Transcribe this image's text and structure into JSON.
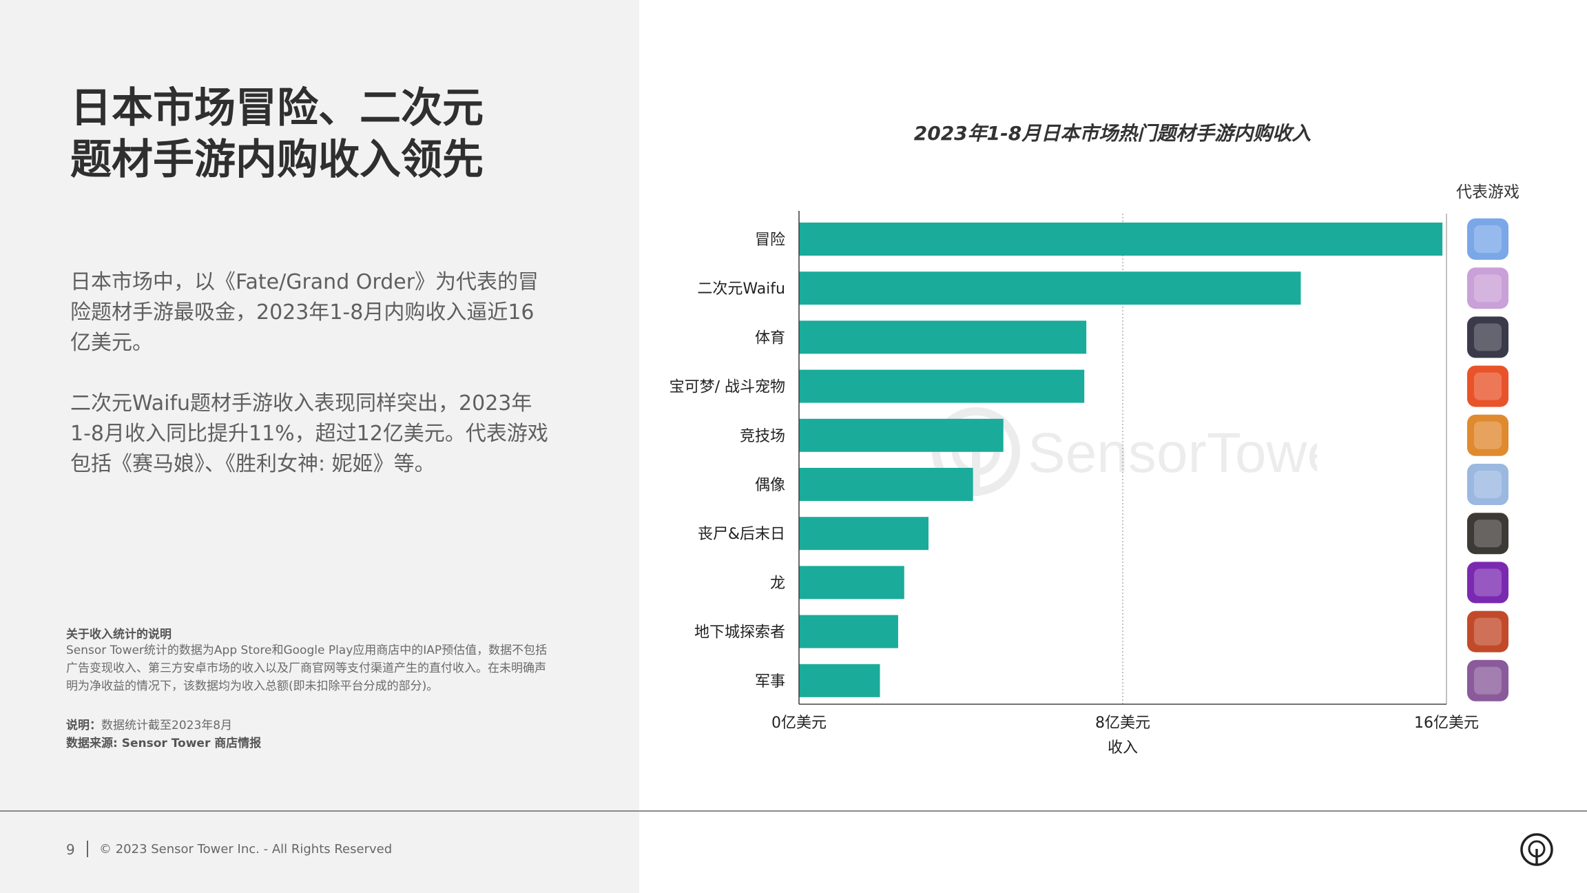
{
  "headline": {
    "line1": "日本市场冒险、二次元",
    "line2": "题材手游内购收入领先"
  },
  "paragraphs": [
    "日本市场中，以《Fate/Grand Order》为代表的冒险题材手游最吸金，2023年1-8月内购收入逼近16亿美元。",
    "二次元Waifu题材手游收入表现同样突出，2023年1-8月收入同比提升11%，超过12亿美元。代表游戏包括《赛马娘》、《胜利女神: 妮姬》等。"
  ],
  "notes": {
    "title": "关于收入统计的说明",
    "body": "Sensor Tower统计的数据为App Store和Google Play应用商店中的IAP预估值，数据不包括广告变现收入、第三方安卓市场的收入以及厂商官网等支付渠道产生的直付收入。在未明确声明为净收益的情况下，该数据均为收入总额(即未扣除平台分成的部分)。",
    "date_label": "说明：",
    "date_text": "数据统计截至2023年8月",
    "source": "数据来源: Sensor Tower 商店情报"
  },
  "footer": {
    "page_number": "9",
    "copyright": "© 2023 Sensor Tower Inc. - All Rights Reserved"
  },
  "watermark_text": "SensorTower",
  "colors": {
    "bar": "#1aab9b",
    "left_panel": "#f2f2f2",
    "headline": "#2f2f2f"
  },
  "chart_data": {
    "type": "bar",
    "orientation": "horizontal",
    "title": "2023年1-8月日本市场热门题材手游内购收入",
    "xlabel": "收入",
    "ylabel": "",
    "side_column_label": "代表游戏",
    "categories": [
      "冒险",
      "二次元Waifu",
      "体育",
      "宝可梦/ 战斗宠物",
      "竞技场",
      "偶像",
      "丧尸&后末日",
      "龙",
      "地下城探索者",
      "军事"
    ],
    "values": [
      15.9,
      12.4,
      7.1,
      7.05,
      5.05,
      4.3,
      3.2,
      2.6,
      2.45,
      2.0
    ],
    "unit": "亿美元",
    "xlim": [
      0,
      16
    ],
    "ticks": [
      {
        "value": 0,
        "label": "0亿美元"
      },
      {
        "value": 8,
        "label": "8亿美元"
      },
      {
        "value": 16,
        "label": "16亿美元"
      }
    ],
    "grid": "vertical dashed at 8",
    "game_icons": [
      "adventure-game-icon",
      "waifu-game-icon",
      "sports-game-icon",
      "pet-battle-game-icon",
      "arena-game-icon",
      "idol-game-icon",
      "zombie-game-icon",
      "dragon-game-icon",
      "dungeon-game-icon",
      "military-game-icon"
    ],
    "icon_colors": [
      "#7aa7e8",
      "#c9a0d8",
      "#3a3a4a",
      "#e8532a",
      "#e08a30",
      "#9ab8e0",
      "#3d3a36",
      "#7a2ab0",
      "#c24a2a",
      "#8a5a9a"
    ]
  }
}
